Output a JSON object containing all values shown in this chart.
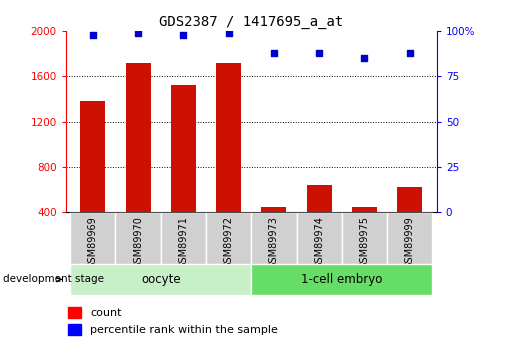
{
  "title": "GDS2387 / 1417695_a_at",
  "samples": [
    "GSM89969",
    "GSM89970",
    "GSM89971",
    "GSM89972",
    "GSM89973",
    "GSM89974",
    "GSM89975",
    "GSM89999"
  ],
  "counts": [
    1380,
    1720,
    1520,
    1720,
    450,
    640,
    450,
    620
  ],
  "percentiles": [
    98,
    99,
    98,
    99,
    88,
    88,
    85,
    88
  ],
  "group_labels": [
    "oocyte",
    "1-cell embryo"
  ],
  "group_colors": [
    "#c8f0c8",
    "#66dd66"
  ],
  "ylim_left": [
    400,
    2000
  ],
  "ylim_right": [
    0,
    100
  ],
  "yticks_left": [
    400,
    800,
    1200,
    1600,
    2000
  ],
  "ytick_labels_left": [
    "400",
    "800",
    "1200",
    "1600",
    "2000"
  ],
  "yticks_right": [
    0,
    25,
    50,
    75,
    100
  ],
  "ytick_labels_right": [
    "0",
    "25",
    "50",
    "75",
    "100%"
  ],
  "bar_color": "#cc1100",
  "dot_color": "#0000cc",
  "bar_width": 0.55,
  "development_stage_label": "development stage",
  "legend_count_label": "count",
  "legend_percentile_label": "percentile rank within the sample",
  "tick_label_area_color": "#d0d0d0"
}
